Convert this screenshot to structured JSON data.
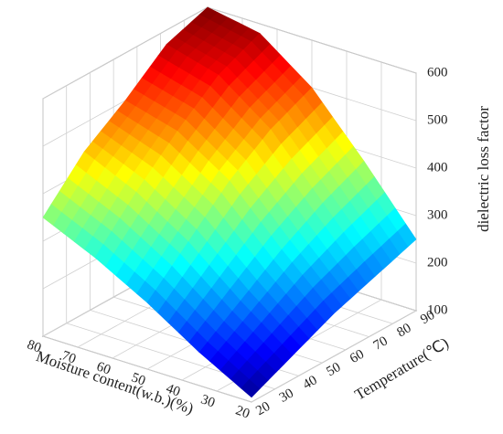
{
  "chart_data": {
    "type": "surface",
    "xlabel": "Moisture content(w.b.)(%)",
    "ylabel": "Temperature(℃)",
    "zlabel": "dielectric loss factor",
    "x": [
      20,
      35,
      50,
      65,
      80
    ],
    "y": [
      20,
      37.5,
      55,
      72.5,
      90
    ],
    "z": [
      [
        110,
        150,
        190,
        220,
        250
      ],
      [
        170,
        230,
        290,
        340,
        380
      ],
      [
        240,
        320,
        400,
        460,
        500
      ],
      [
        300,
        390,
        470,
        540,
        580
      ],
      [
        350,
        440,
        500,
        570,
        600
      ]
    ],
    "xlim": [
      20,
      80
    ],
    "ylim": [
      20,
      90
    ],
    "zlim": [
      100,
      600
    ],
    "xticks": [
      20,
      30,
      40,
      50,
      60,
      70,
      80
    ],
    "yticks": [
      20,
      30,
      40,
      50,
      60,
      70,
      80,
      90
    ],
    "zticks": [
      100,
      200,
      300,
      400,
      500,
      600
    ],
    "colormap": "jet",
    "grid": true
  }
}
